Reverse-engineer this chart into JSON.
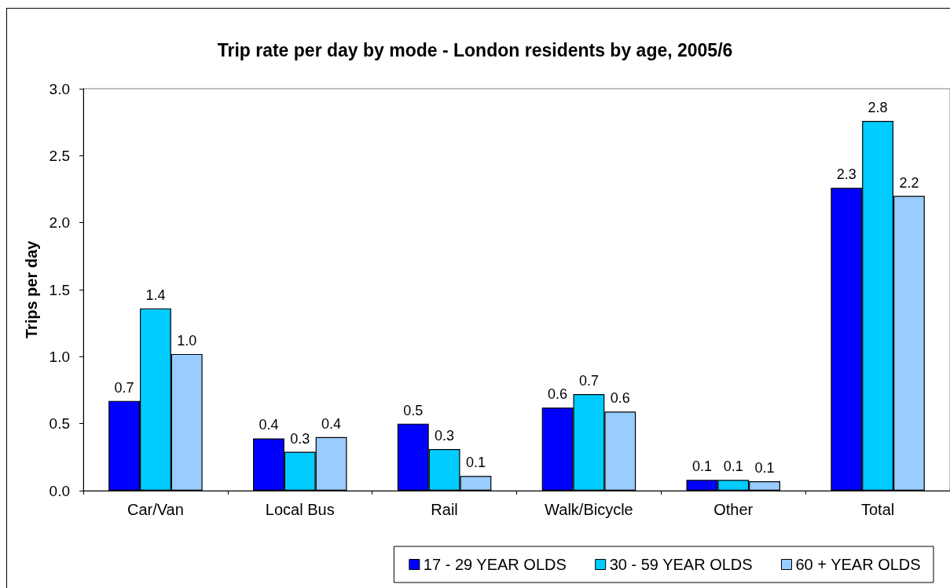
{
  "chart_data": {
    "type": "bar",
    "title": "Trip rate per day by mode - London residents by age, 2005/6",
    "ylabel": "Trips per day",
    "categories": [
      "Car/Van",
      "Local Bus",
      "Rail",
      "Walk/Bicycle",
      "Other",
      "Total"
    ],
    "series": [
      {
        "name": "17 - 29 YEAR OLDS",
        "color": "#0000ff",
        "values": [
          0.67,
          0.39,
          0.5,
          0.62,
          0.08,
          2.26
        ],
        "value_labels": [
          "0.7",
          "0.4",
          "0.5",
          "0.6",
          "0.1",
          "2.3"
        ]
      },
      {
        "name": "30 - 59 YEAR OLDS",
        "color": "#00ccff",
        "values": [
          1.36,
          0.29,
          0.31,
          0.72,
          0.08,
          2.76
        ],
        "value_labels": [
          "1.4",
          "0.3",
          "0.3",
          "0.7",
          "0.1",
          "2.8"
        ]
      },
      {
        "name": "60 + YEAR OLDS",
        "color": "#99ccff",
        "values": [
          1.02,
          0.4,
          0.11,
          0.59,
          0.07,
          2.2
        ],
        "value_labels": [
          "1.0",
          "0.4",
          "0.1",
          "0.6",
          "0.1",
          "2.2"
        ]
      }
    ],
    "ylim": [
      0,
      3
    ],
    "yticks": [
      {
        "value": 0,
        "label": "0.0"
      },
      0.5,
      {
        "value": 1,
        "label": "1.0"
      },
      1.5,
      {
        "value": 2,
        "label": "2.0"
      },
      2.5,
      {
        "value": 3,
        "label": "3.0"
      }
    ],
    "legend": "bottom right"
  }
}
